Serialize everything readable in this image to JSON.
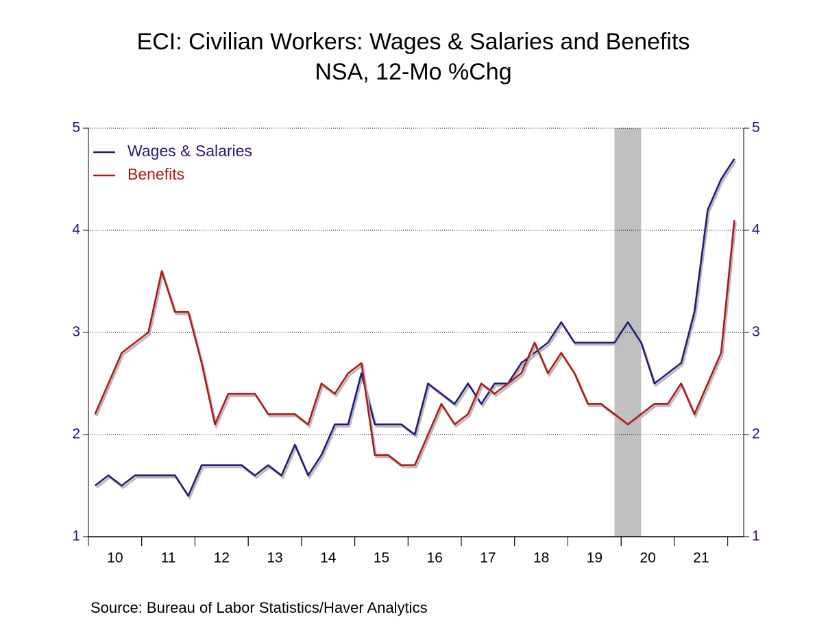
{
  "chart_data": {
    "type": "line",
    "title": "ECI: Civilian Workers: Wages & Salaries and Benefits",
    "subtitle": "NSA, 12-Mo %Chg",
    "source": "Source:  Bureau of Labor Statistics/Haver Analytics",
    "x": [
      2010.125,
      2010.375,
      2010.625,
      2010.875,
      2011.125,
      2011.375,
      2011.625,
      2011.875,
      2012.125,
      2012.375,
      2012.625,
      2012.875,
      2013.125,
      2013.375,
      2013.625,
      2013.875,
      2014.125,
      2014.375,
      2014.625,
      2014.875,
      2015.125,
      2015.375,
      2015.625,
      2015.875,
      2016.125,
      2016.375,
      2016.625,
      2016.875,
      2017.125,
      2017.375,
      2017.625,
      2017.875,
      2018.125,
      2018.375,
      2018.625,
      2018.875,
      2019.125,
      2019.375,
      2019.625,
      2019.875,
      2020.125,
      2020.375,
      2020.625,
      2020.875,
      2021.125,
      2021.375,
      2021.625,
      2021.875,
      2022.125
    ],
    "series": [
      {
        "name": "Wages & Salaries",
        "color": "#1c1c7c",
        "values": [
          1.5,
          1.6,
          1.5,
          1.6,
          1.6,
          1.6,
          1.6,
          1.4,
          1.7,
          1.7,
          1.7,
          1.7,
          1.6,
          1.7,
          1.6,
          1.9,
          1.6,
          1.8,
          2.1,
          2.1,
          2.6,
          2.1,
          2.1,
          2.1,
          2.0,
          2.5,
          2.4,
          2.3,
          2.5,
          2.3,
          2.5,
          2.5,
          2.7,
          2.8,
          2.9,
          3.1,
          2.9,
          2.9,
          2.9,
          2.9,
          3.1,
          2.9,
          2.5,
          2.6,
          2.7,
          3.2,
          4.2,
          4.5,
          4.7
        ]
      },
      {
        "name": "Benefits",
        "color": "#b01818",
        "values": [
          2.2,
          2.5,
          2.8,
          2.9,
          3.0,
          3.6,
          3.2,
          3.2,
          2.7,
          2.1,
          2.4,
          2.4,
          2.4,
          2.2,
          2.2,
          2.2,
          2.1,
          2.5,
          2.4,
          2.6,
          2.7,
          1.8,
          1.8,
          1.7,
          1.7,
          2.0,
          2.3,
          2.1,
          2.2,
          2.5,
          2.4,
          2.5,
          2.6,
          2.9,
          2.6,
          2.8,
          2.6,
          2.3,
          2.3,
          2.2,
          2.1,
          2.2,
          2.3,
          2.3,
          2.5,
          2.2,
          2.5,
          2.8,
          4.1
        ]
      }
    ],
    "xlim": [
      2010,
      2022.3
    ],
    "xticks": [
      {
        "value": 2010.5,
        "label": "10"
      },
      {
        "value": 2011.5,
        "label": "11"
      },
      {
        "value": 2012.5,
        "label": "12"
      },
      {
        "value": 2013.5,
        "label": "13"
      },
      {
        "value": 2014.5,
        "label": "14"
      },
      {
        "value": 2015.5,
        "label": "15"
      },
      {
        "value": 2016.5,
        "label": "16"
      },
      {
        "value": 2017.5,
        "label": "17"
      },
      {
        "value": 2018.5,
        "label": "18"
      },
      {
        "value": 2019.5,
        "label": "19"
      },
      {
        "value": 2020.5,
        "label": "20"
      },
      {
        "value": 2021.5,
        "label": "21"
      }
    ],
    "ylim": [
      1,
      5
    ],
    "yticks": [
      1,
      2,
      3,
      4,
      5
    ],
    "shaded": [
      2019.875,
      2020.375
    ],
    "grid": true,
    "legend": "upper left"
  }
}
